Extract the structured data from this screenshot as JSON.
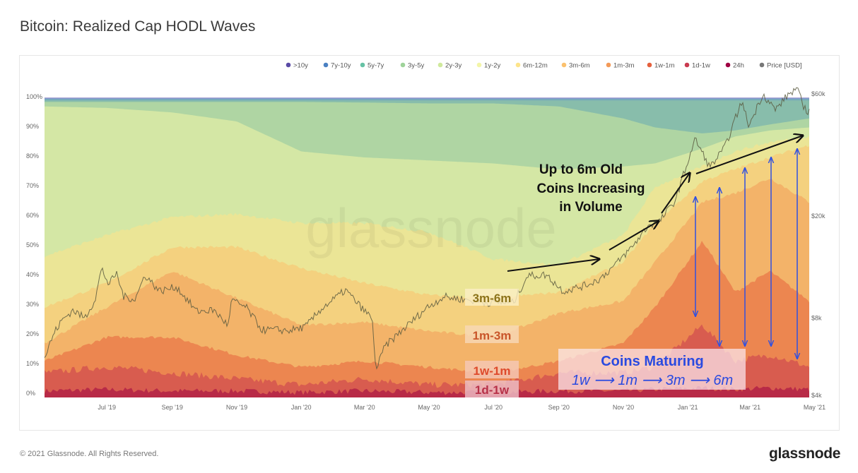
{
  "header": {
    "title": "Bitcoin: Realized Cap HODL Waves"
  },
  "footer": {
    "copyright": "© 2021 Glassnode. All Rights Reserved.",
    "logo": "glassnode"
  },
  "chart_data": {
    "type": "area",
    "title": "Bitcoin: Realized Cap HODL Waves",
    "watermark": "glassnode",
    "stacked": true,
    "xlim": [
      "2019-05-03",
      "2021-04-26"
    ],
    "ylim_left": [
      0,
      100
    ],
    "ylim_right_log": [
      4000,
      60000
    ],
    "x_ticks": [
      {
        "label": "Jul '19",
        "date": "2019-07-01"
      },
      {
        "label": "Sep '19",
        "date": "2019-09-01"
      },
      {
        "label": "Nov '19",
        "date": "2019-11-01"
      },
      {
        "label": "Jan '20",
        "date": "2020-01-01"
      },
      {
        "label": "Mar '20",
        "date": "2020-03-01"
      },
      {
        "label": "May '20",
        "date": "2020-05-01"
      },
      {
        "label": "Jul '20",
        "date": "2020-07-01"
      },
      {
        "label": "Sep '20",
        "date": "2020-09-01"
      },
      {
        "label": "Nov '20",
        "date": "2020-11-01"
      },
      {
        "label": "Jan '21",
        "date": "2021-01-01"
      },
      {
        "label": "Mar '21",
        "date": "2021-03-01"
      },
      {
        "label": "May '21",
        "date": "2021-05-01"
      }
    ],
    "y_ticks_left": [
      {
        "label": "0%",
        "value": 0
      },
      {
        "label": "10%",
        "value": 10
      },
      {
        "label": "20%",
        "value": 20
      },
      {
        "label": "30%",
        "value": 30
      },
      {
        "label": "40%",
        "value": 40
      },
      {
        "label": "50%",
        "value": 50
      },
      {
        "label": "60%",
        "value": 60
      },
      {
        "label": "70%",
        "value": 70
      },
      {
        "label": "80%",
        "value": 80
      },
      {
        "label": "90%",
        "value": 90
      },
      {
        "label": "100%",
        "value": 100
      }
    ],
    "y_ticks_right": [
      {
        "label": "$4k",
        "value": 4000
      },
      {
        "label": "$8k",
        "value": 8000
      },
      {
        "label": "$20k",
        "value": 20000
      },
      {
        "label": "$60k",
        "value": 60000
      }
    ],
    "legend_position": "top-right",
    "legend": [
      {
        "name": ">10y",
        "color": "#5a4ba6"
      },
      {
        "name": "7y-10y",
        "color": "#4a80c2"
      },
      {
        "name": "5y-7y",
        "color": "#66c2a5"
      },
      {
        "name": "3y-5y",
        "color": "#9fd39a"
      },
      {
        "name": "2y-3y",
        "color": "#cfe99c"
      },
      {
        "name": "1y-2y",
        "color": "#f3f5a8"
      },
      {
        "name": "6m-12m",
        "color": "#fde48a"
      },
      {
        "name": "3m-6m",
        "color": "#fbc16e"
      },
      {
        "name": "1m-3m",
        "color": "#f39a58"
      },
      {
        "name": "1w-1m",
        "color": "#e5603d"
      },
      {
        "name": "1d-1w",
        "color": "#c93a4f"
      },
      {
        "name": "24h",
        "color": "#9e0142"
      },
      {
        "name": "Price [USD]",
        "color": "#777777"
      }
    ],
    "dates": [
      "2019-05-03",
      "2019-07-01",
      "2019-09-01",
      "2019-11-01",
      "2020-01-01",
      "2020-03-01",
      "2020-05-01",
      "2020-07-01",
      "2020-09-01",
      "2020-11-01",
      "2020-12-01",
      "2021-01-15",
      "2021-02-15",
      "2021-03-20",
      "2021-04-26"
    ],
    "series_cumulative_top_pct": [
      {
        "name": "24h",
        "values": [
          2,
          2.5,
          2,
          2,
          1.5,
          2,
          1.5,
          1.5,
          2,
          2,
          2.5,
          3,
          2.5,
          3,
          2.5
        ]
      },
      {
        "name": "1d-1w",
        "values": [
          8,
          10,
          8,
          6,
          4,
          6,
          4,
          4,
          8,
          8,
          10,
          24,
          12,
          14,
          10
        ]
      },
      {
        "name": "1w-1m",
        "values": [
          12,
          20,
          20,
          14,
          10,
          12,
          10,
          8,
          12,
          18,
          30,
          52,
          35,
          42,
          32
        ]
      },
      {
        "name": "1m-3m",
        "values": [
          18,
          30,
          42,
          33,
          24,
          25,
          22,
          20,
          28,
          32,
          45,
          65,
          68,
          73,
          65
        ]
      },
      {
        "name": "3m-6m",
        "values": [
          30,
          38,
          50,
          50,
          43,
          38,
          34,
          33,
          35,
          45,
          58,
          72,
          76,
          80,
          84
        ]
      },
      {
        "name": "6m-12m",
        "values": [
          47,
          54,
          60,
          61,
          58,
          58,
          55,
          46,
          44,
          54,
          70,
          77,
          82,
          85,
          87
        ]
      },
      {
        "name": "1y-2y",
        "values": [
          97,
          96.5,
          95,
          92,
          82,
          80,
          79,
          78,
          76,
          77,
          78,
          83,
          87,
          89,
          90
        ]
      },
      {
        "name": "2y-3y",
        "values": [
          98.5,
          98.5,
          98.5,
          98.5,
          98.5,
          98.3,
          98,
          98,
          97,
          93,
          90,
          88,
          89,
          91,
          93
        ]
      },
      {
        "name": "3y-5y",
        "values": [
          99,
          99,
          99,
          99,
          99,
          99,
          99,
          99,
          99,
          99,
          99,
          99,
          99,
          99,
          99
        ]
      },
      {
        "name": "5y-7y",
        "values": [
          99.5,
          99.5,
          99.5,
          99.5,
          99.5,
          99.5,
          99.5,
          99.5,
          99.5,
          99.5,
          99.5,
          99.5,
          99.5,
          99.5,
          99.5
        ]
      },
      {
        "name": "7y-10y",
        "values": [
          99.8,
          99.8,
          99.8,
          99.8,
          99.8,
          99.8,
          99.8,
          99.8,
          99.8,
          99.8,
          99.8,
          99.8,
          99.8,
          99.8,
          99.8
        ]
      },
      {
        "name": ">10y",
        "values": [
          100,
          100,
          100,
          100,
          100,
          100,
          100,
          100,
          100,
          100,
          100,
          100,
          100,
          100,
          100
        ]
      }
    ],
    "price": {
      "name": "Price [USD]",
      "dates": [
        "2019-05-03",
        "2019-05-12",
        "2019-05-20",
        "2019-05-30",
        "2019-06-10",
        "2019-06-20",
        "2019-06-26",
        "2019-07-03",
        "2019-07-10",
        "2019-07-17",
        "2019-07-28",
        "2019-08-06",
        "2019-08-20",
        "2019-09-05",
        "2019-09-24",
        "2019-10-10",
        "2019-10-24",
        "2019-10-27",
        "2019-11-10",
        "2019-11-25",
        "2019-12-10",
        "2019-12-20",
        "2020-01-05",
        "2020-01-20",
        "2020-02-12",
        "2020-02-28",
        "2020-03-08",
        "2020-03-12",
        "2020-03-20",
        "2020-04-06",
        "2020-04-29",
        "2020-05-15",
        "2020-06-01",
        "2020-06-25",
        "2020-07-20",
        "2020-08-02",
        "2020-08-20",
        "2020-09-05",
        "2020-09-25",
        "2020-10-10",
        "2020-10-25",
        "2020-11-10",
        "2020-11-25",
        "2020-12-05",
        "2020-12-20",
        "2021-01-08",
        "2021-01-22",
        "2021-02-05",
        "2021-02-21",
        "2021-02-28",
        "2021-03-13",
        "2021-03-25",
        "2021-04-05",
        "2021-04-14",
        "2021-04-24",
        "2021-04-26"
      ],
      "values": [
        5600,
        7000,
        7900,
        8600,
        8000,
        9500,
        12500,
        10800,
        12000,
        9700,
        9500,
        11800,
        10200,
        10600,
        8500,
        8600,
        7500,
        9400,
        8800,
        7200,
        7200,
        7150,
        7400,
        8700,
        10300,
        8700,
        8000,
        5000,
        6200,
        7200,
        8800,
        9700,
        9500,
        9200,
        9200,
        11700,
        11800,
        10200,
        10700,
        11400,
        13000,
        15300,
        18500,
        19000,
        23000,
        40000,
        31000,
        37000,
        56000,
        45000,
        60000,
        52000,
        59000,
        63000,
        50000,
        54000
      ]
    },
    "annotations": {
      "band_labels": {
        "b3m6m": "3m-6m",
        "b1m3m": "1m-3m",
        "b1w1m": "1w-1m",
        "b1d1w": "1d-1w"
      },
      "volume_text": [
        "Up to 6m Old",
        "Coins Increasing",
        "in Volume"
      ],
      "maturing_title": "Coins Maturing",
      "maturing_sequence": "1w ⟶ 1m ⟶ 3m ⟶ 6m"
    }
  }
}
